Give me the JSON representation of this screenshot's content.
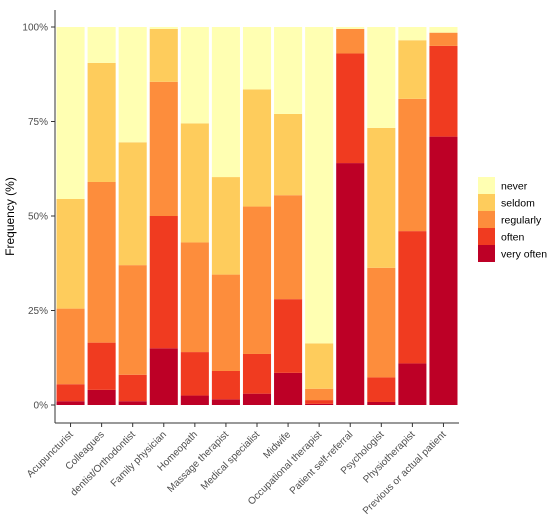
{
  "chart_data": {
    "type": "bar",
    "stacked": true,
    "ylabel": "Frequency (%)",
    "xlabel": "",
    "ylim": [
      0,
      100
    ],
    "yticks": [
      0,
      25,
      50,
      75,
      100
    ],
    "ytick_labels": [
      "0%",
      "25%",
      "50%",
      "75%",
      "100%"
    ],
    "grid": false,
    "legend_position": "right",
    "categories": [
      "Acupuncturist",
      "Colleagues",
      "dentist/Orthodontist",
      "Family physician",
      "Homeopath",
      "Massage therapist",
      "Medical specialist",
      "Midwife",
      "Occupational therapist",
      "Patient self-referral",
      "Psychologist",
      "Physiotherapist",
      "Previous or actual patient"
    ],
    "series": [
      {
        "name": "very often",
        "color": "#bd0026",
        "values": [
          1,
          4,
          1,
          15,
          2.5,
          1.5,
          3,
          8.5,
          0.3,
          64,
          0.8,
          11,
          71
        ]
      },
      {
        "name": "often",
        "color": "#f03b20",
        "values": [
          4.5,
          12.5,
          7,
          35,
          11.5,
          7.5,
          10.5,
          19.5,
          1,
          29,
          6.5,
          35,
          24
        ]
      },
      {
        "name": "regularly",
        "color": "#fd8d3c",
        "values": [
          20,
          42.5,
          29,
          35.5,
          29,
          25.5,
          39,
          27.5,
          3,
          6.5,
          29,
          35,
          3.5
        ]
      },
      {
        "name": "seldom",
        "color": "#fecc5c",
        "values": [
          29,
          31.5,
          32.5,
          14,
          31.5,
          25.8,
          31,
          21.5,
          12,
          0,
          37,
          15.5,
          0
        ]
      },
      {
        "name": "never",
        "color": "#ffffb2",
        "values": [
          45.5,
          9.5,
          30.5,
          0.5,
          25.5,
          39.7,
          16.5,
          23,
          83.7,
          0.5,
          26.7,
          3.5,
          1.5
        ]
      }
    ],
    "legend_order": [
      "never",
      "seldom",
      "regularly",
      "often",
      "very often"
    ]
  }
}
